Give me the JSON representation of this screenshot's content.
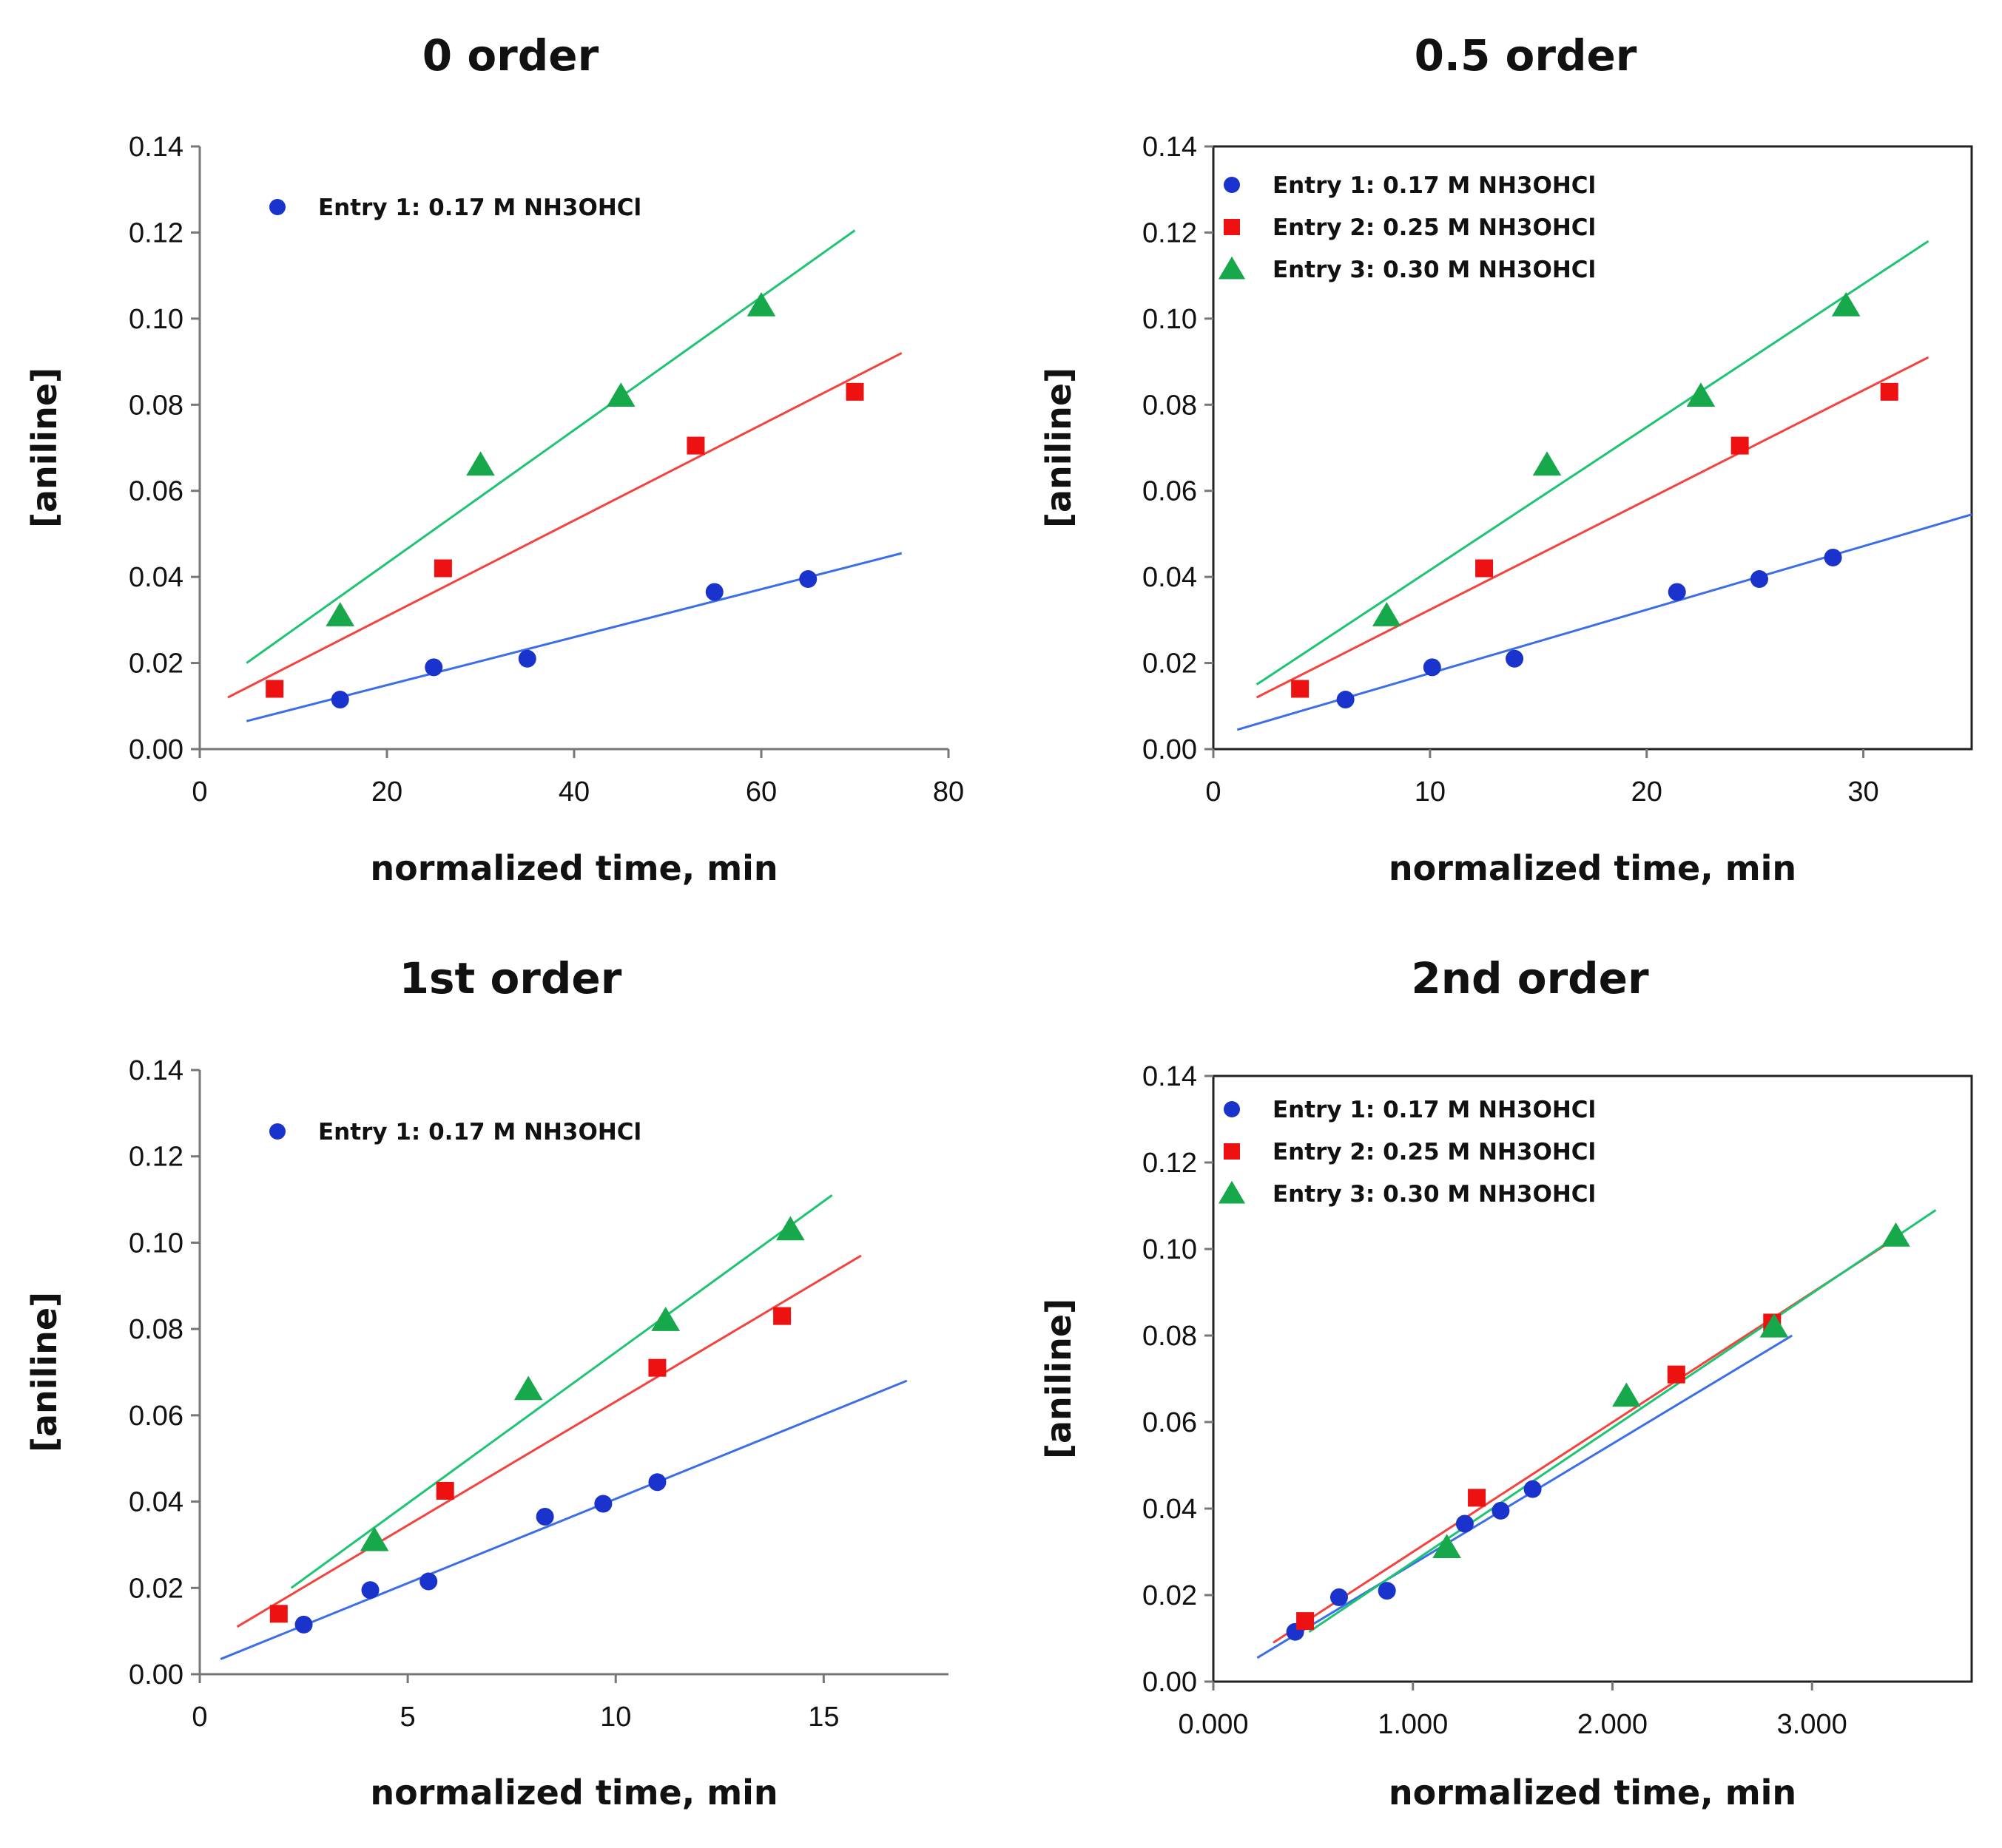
{
  "colors": {
    "entry1": "#1a33cc",
    "entry2": "#ee1111",
    "entry3": "#16a84a",
    "fit1": "#3b6ee8",
    "fit2": "#f4433f",
    "fit3": "#1dc472"
  },
  "chart_data": [
    {
      "type": "scatter",
      "title": "0 order",
      "xlabel": "normalized time, min",
      "ylabel": "[aniline]",
      "xlim": [
        0,
        80
      ],
      "ylim": [
        0,
        0.14
      ],
      "xticks": [
        "0",
        "20",
        "40",
        "60",
        "80"
      ],
      "yticks": [
        "0.00",
        "0.02",
        "0.04",
        "0.06",
        "0.08",
        "0.10",
        "0.12",
        "0.14"
      ],
      "legend": [
        "Entry 1: 0.17 M NH3OHCl"
      ],
      "series": [
        {
          "name": "Entry 1: 0.17 M NH3OHCl",
          "marker": "circle",
          "color_key": "entry1",
          "points": [
            [
              15,
              0.0115
            ],
            [
              25,
              0.019
            ],
            [
              35,
              0.021
            ],
            [
              55,
              0.0365
            ],
            [
              65,
              0.0395
            ]
          ],
          "fit": [
            [
              5,
              0.0065
            ],
            [
              75,
              0.0455
            ]
          ]
        },
        {
          "name": "Entry 2: 0.25 M NH3OHCl",
          "marker": "square",
          "color_key": "entry2",
          "points": [
            [
              8,
              0.014
            ],
            [
              26,
              0.042
            ],
            [
              53,
              0.0705
            ],
            [
              70,
              0.083
            ]
          ],
          "fit": [
            [
              3,
              0.012
            ],
            [
              75,
              0.092
            ]
          ]
        },
        {
          "name": "Entry 3: 0.30 M NH3OHCl",
          "marker": "triangle",
          "color_key": "entry3",
          "points": [
            [
              15,
              0.031
            ],
            [
              30,
              0.066
            ],
            [
              45,
              0.082
            ],
            [
              60,
              0.103
            ]
          ],
          "fit": [
            [
              5,
              0.02
            ],
            [
              70,
              0.1205
            ]
          ]
        }
      ]
    },
    {
      "type": "scatter",
      "title": "0.5 order",
      "xlabel": "normalized time, min",
      "ylabel": "[aniline]",
      "xlim": [
        0,
        35
      ],
      "ylim": [
        0,
        0.14
      ],
      "xticks": [
        "0",
        "10",
        "20",
        "30"
      ],
      "yticks": [
        "0.00",
        "0.02",
        "0.04",
        "0.06",
        "0.08",
        "0.10",
        "0.12",
        "0.14"
      ],
      "legend": [
        "Entry 1: 0.17 M NH3OHCl",
        "Entry 2: 0.25 M NH3OHCl",
        "Entry 3: 0.30 M NH3OHCl"
      ],
      "series": [
        {
          "name": "Entry 1: 0.17 M NH3OHCl",
          "marker": "circle",
          "color_key": "entry1",
          "points": [
            [
              6.1,
              0.0115
            ],
            [
              10.1,
              0.019
            ],
            [
              13.9,
              0.021
            ],
            [
              21.4,
              0.0365
            ],
            [
              25.2,
              0.0395
            ],
            [
              28.6,
              0.0445
            ]
          ],
          "fit": [
            [
              1.1,
              0.0045
            ],
            [
              35,
              0.0545
            ]
          ]
        },
        {
          "name": "Entry 2: 0.25 M NH3OHCl",
          "marker": "square",
          "color_key": "entry2",
          "points": [
            [
              4,
              0.014
            ],
            [
              12.5,
              0.042
            ],
            [
              24.3,
              0.0705
            ],
            [
              31.2,
              0.083
            ]
          ],
          "fit": [
            [
              2,
              0.012
            ],
            [
              33,
              0.091
            ]
          ]
        },
        {
          "name": "Entry 3: 0.30 M NH3OHCl",
          "marker": "triangle",
          "color_key": "entry3",
          "points": [
            [
              8,
              0.031
            ],
            [
              15.4,
              0.066
            ],
            [
              22.5,
              0.082
            ],
            [
              29.2,
              0.103
            ]
          ],
          "fit": [
            [
              2,
              0.015
            ],
            [
              33,
              0.118
            ]
          ]
        }
      ]
    },
    {
      "type": "scatter",
      "title": "1st order",
      "xlabel": "normalized time, min",
      "ylabel": "[aniline]",
      "xlim": [
        0,
        18
      ],
      "ylim": [
        0,
        0.14
      ],
      "xticks": [
        "0",
        "5",
        "10",
        "15"
      ],
      "yticks": [
        "0.00",
        "0.02",
        "0.04",
        "0.06",
        "0.08",
        "0.10",
        "0.12",
        "0.14"
      ],
      "legend": [
        "Entry 1: 0.17 M NH3OHCl"
      ],
      "series": [
        {
          "name": "Entry 1: 0.17 M NH3OHCl",
          "marker": "circle",
          "color_key": "entry1",
          "points": [
            [
              2.5,
              0.0115
            ],
            [
              4.1,
              0.0195
            ],
            [
              5.5,
              0.0215
            ],
            [
              8.3,
              0.0365
            ],
            [
              9.7,
              0.0395
            ],
            [
              11,
              0.0445
            ]
          ],
          "fit": [
            [
              0.5,
              0.0035
            ],
            [
              17,
              0.068
            ]
          ]
        },
        {
          "name": "Entry 2: 0.25 M NH3OHCl",
          "marker": "square",
          "color_key": "entry2",
          "points": [
            [
              1.9,
              0.014
            ],
            [
              5.9,
              0.0425
            ],
            [
              11,
              0.071
            ],
            [
              14,
              0.083
            ]
          ],
          "fit": [
            [
              0.9,
              0.011
            ],
            [
              15.9,
              0.097
            ]
          ]
        },
        {
          "name": "Entry 3: 0.30 M NH3OHCl",
          "marker": "triangle",
          "color_key": "entry3",
          "points": [
            [
              4.2,
              0.031
            ],
            [
              7.9,
              0.066
            ],
            [
              11.2,
              0.082
            ],
            [
              14.2,
              0.103
            ]
          ],
          "fit": [
            [
              2.2,
              0.02
            ],
            [
              15.2,
              0.111
            ]
          ]
        }
      ]
    },
    {
      "type": "scatter",
      "title": "2nd order",
      "xlabel": "normalized time, min",
      "ylabel": "[aniline]",
      "xlim": [
        0,
        3.8
      ],
      "ylim": [
        0,
        0.14
      ],
      "xticks": [
        "0.000",
        "1.000",
        "2.000",
        "3.000"
      ],
      "yticks": [
        "0.00",
        "0.02",
        "0.04",
        "0.06",
        "0.08",
        "0.10",
        "0.12",
        "0.14"
      ],
      "legend": [
        "Entry 1: 0.17 M NH3OHCl",
        "Entry 2: 0.25 M NH3OHCl",
        "Entry 3: 0.30 M NH3OHCl"
      ],
      "series": [
        {
          "name": "Entry 1: 0.17 M NH3OHCl",
          "marker": "circle",
          "color_key": "entry1",
          "points": [
            [
              0.41,
              0.0115
            ],
            [
              0.63,
              0.0195
            ],
            [
              0.87,
              0.021
            ],
            [
              1.26,
              0.0365
            ],
            [
              1.44,
              0.0395
            ],
            [
              1.6,
              0.0445
            ]
          ],
          "fit": [
            [
              0.22,
              0.0055
            ],
            [
              2.9,
              0.08
            ]
          ]
        },
        {
          "name": "Entry 2: 0.25 M NH3OHCl",
          "marker": "square",
          "color_key": "entry2",
          "points": [
            [
              0.46,
              0.014
            ],
            [
              1.32,
              0.0425
            ],
            [
              2.32,
              0.071
            ],
            [
              2.8,
              0.083
            ]
          ],
          "fit": [
            [
              0.3,
              0.009
            ],
            [
              3.42,
              0.1025
            ]
          ]
        },
        {
          "name": "Entry 3: 0.30 M NH3OHCl",
          "marker": "triangle",
          "color_key": "entry3",
          "points": [
            [
              1.17,
              0.031
            ],
            [
              2.07,
              0.066
            ],
            [
              2.81,
              0.082
            ],
            [
              3.42,
              0.103
            ]
          ],
          "fit": [
            [
              0.48,
              0.0115
            ],
            [
              3.62,
              0.109
            ]
          ]
        }
      ]
    }
  ]
}
